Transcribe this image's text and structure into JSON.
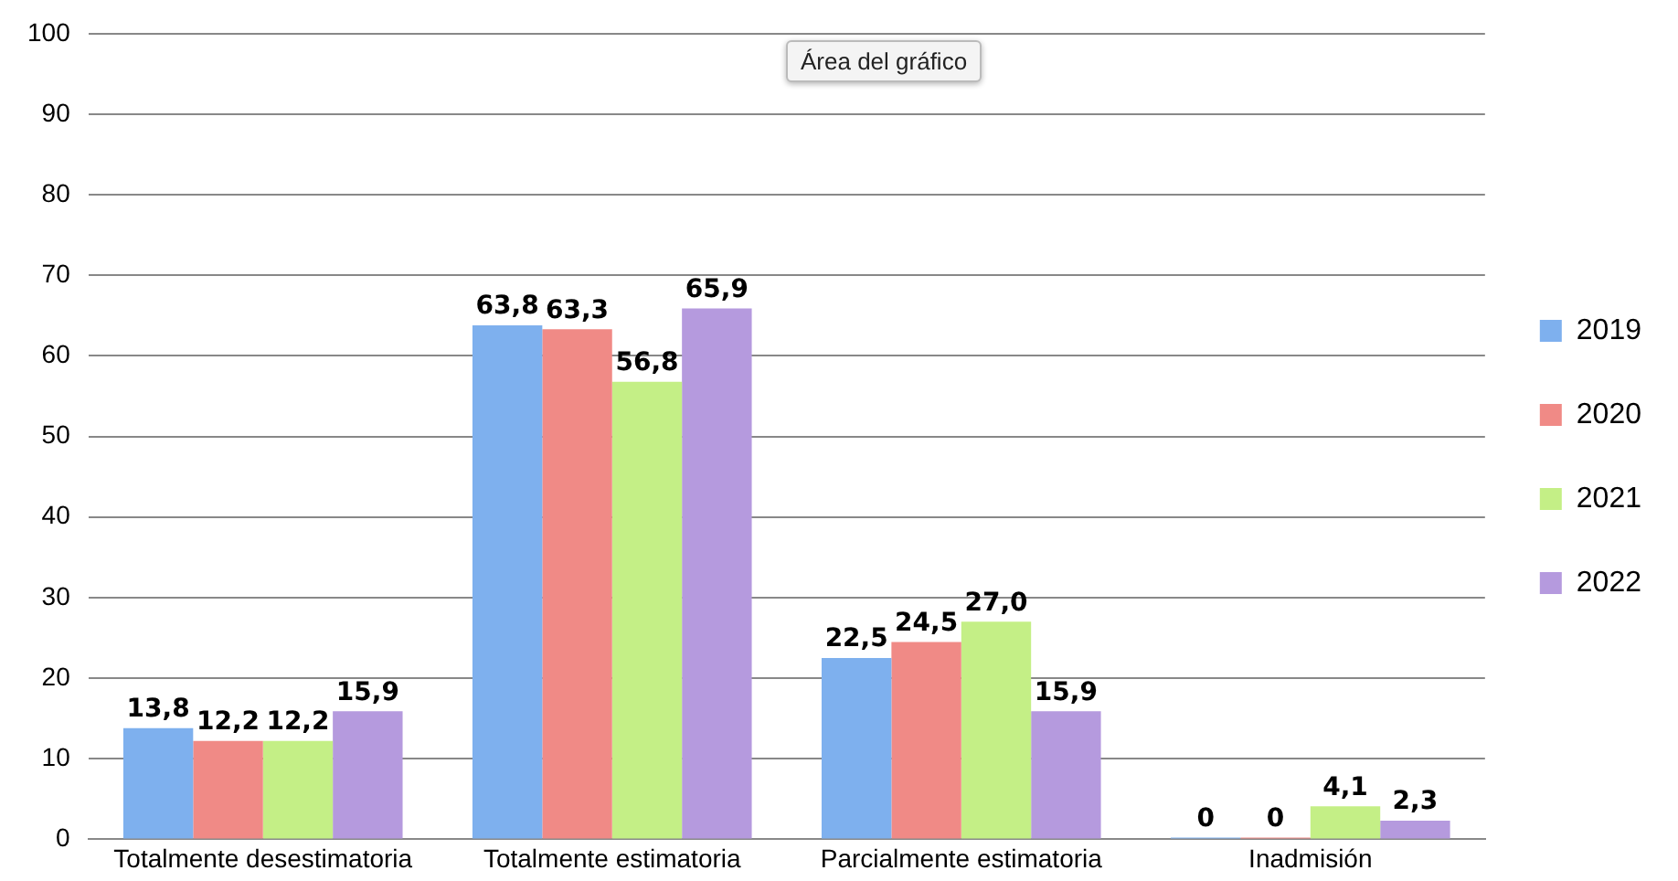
{
  "chart_data": {
    "type": "bar",
    "categories": [
      "Totalmente desestimatoria",
      "Totalmente estimatoria",
      "Parcialmente estimatoria",
      "Inadmisión"
    ],
    "series": [
      {
        "name": "2019",
        "color": "#7eb0ee",
        "values": [
          13.8,
          63.8,
          22.5,
          0
        ],
        "value_labels": [
          "13,8",
          "63,8",
          "22,5",
          "0"
        ]
      },
      {
        "name": "2020",
        "color": "#f08a86",
        "values": [
          12.2,
          63.3,
          24.5,
          0
        ],
        "value_labels": [
          "12,2",
          "63,3",
          "24,5",
          "0"
        ]
      },
      {
        "name": "2021",
        "color": "#c4ef86",
        "values": [
          12.2,
          56.8,
          27.0,
          4.1
        ],
        "value_labels": [
          "12,2",
          "56,8",
          "27,0",
          "4,1"
        ]
      },
      {
        "name": "2022",
        "color": "#b59ade",
        "values": [
          15.9,
          65.9,
          15.9,
          2.3
        ],
        "value_labels": [
          "15,9",
          "65,9",
          "15,9",
          "2,3"
        ]
      }
    ],
    "ylim": [
      0,
      100
    ],
    "yticks": [
      0,
      10,
      20,
      30,
      40,
      50,
      60,
      70,
      80,
      90,
      100
    ],
    "grid": "y",
    "legend": "right",
    "annotations": [
      "Área del gráfico"
    ]
  }
}
